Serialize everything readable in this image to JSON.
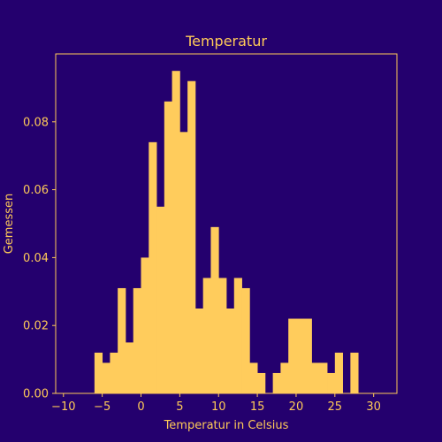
{
  "colors": {
    "background": "#24006e",
    "foreground": "#ffca58",
    "bar": "#ffcc5c"
  },
  "chart_data": {
    "type": "bar",
    "title": "Temperatur",
    "xlabel": "Temperatur in Celsius",
    "ylabel": "Gemessen",
    "xlim": [
      -11,
      33
    ],
    "ylim": [
      0,
      0.1
    ],
    "x_ticks": [
      -10,
      -5,
      0,
      5,
      10,
      15,
      20,
      25,
      30
    ],
    "y_ticks": [
      0.0,
      0.02,
      0.04,
      0.06,
      0.08
    ],
    "x_tick_labels": [
      "−10",
      "−5",
      "0",
      "5",
      "10",
      "15",
      "20",
      "25",
      "30"
    ],
    "y_tick_labels": [
      "0.00",
      "0.02",
      "0.04",
      "0.06",
      "0.08"
    ],
    "grid": false,
    "bin_width": 1,
    "bins_start": [
      -6,
      -5,
      -4,
      -3,
      -2,
      -1,
      0,
      1,
      2,
      3,
      4,
      5,
      6,
      7,
      8,
      9,
      10,
      11,
      12,
      13,
      14,
      15,
      16,
      17,
      18,
      19,
      20,
      21,
      22,
      23,
      24,
      25,
      26,
      27
    ],
    "values": [
      0.012,
      0.009,
      0.012,
      0.031,
      0.015,
      0.031,
      0.04,
      0.074,
      0.055,
      0.086,
      0.095,
      0.077,
      0.092,
      0.025,
      0.034,
      0.049,
      0.034,
      0.025,
      0.034,
      0.031,
      0.009,
      0.006,
      0.0,
      0.006,
      0.009,
      0.022,
      0.022,
      0.022,
      0.009,
      0.009,
      0.006,
      0.012,
      0.0,
      0.012
    ]
  }
}
